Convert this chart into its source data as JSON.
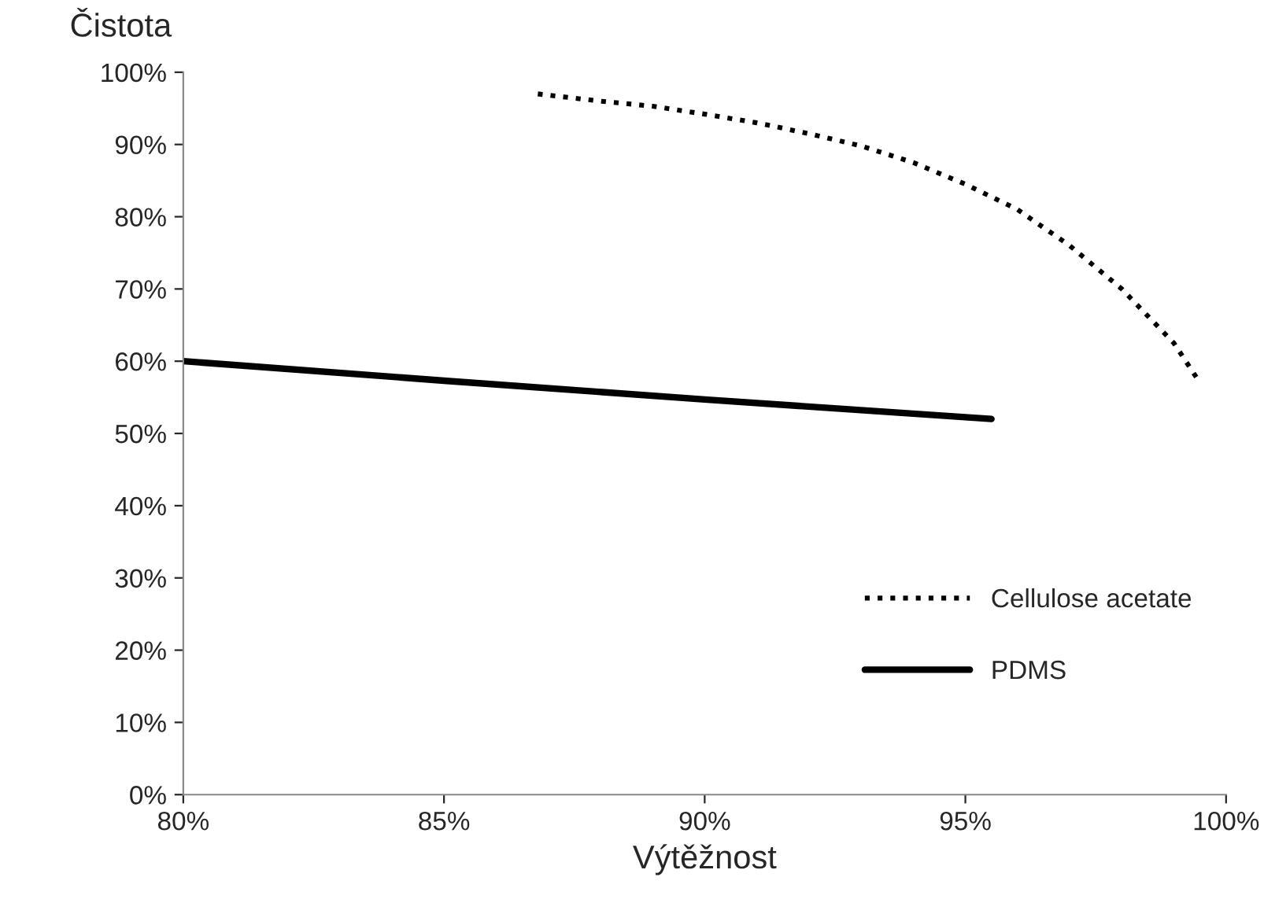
{
  "chart_data": {
    "type": "line",
    "xlabel": "Výtěžnost",
    "ylabel": "Čistota",
    "xlim": [
      80,
      100
    ],
    "ylim": [
      0,
      100
    ],
    "xticks": [
      {
        "value": 80,
        "label": "80%"
      },
      {
        "value": 85,
        "label": "85%"
      },
      {
        "value": 90,
        "label": "90%"
      },
      {
        "value": 95,
        "label": "95%"
      },
      {
        "value": 100,
        "label": "100%"
      }
    ],
    "yticks": [
      {
        "value": 0,
        "label": "0%"
      },
      {
        "value": 10,
        "label": "10%"
      },
      {
        "value": 20,
        "label": "20%"
      },
      {
        "value": 30,
        "label": "30%"
      },
      {
        "value": 40,
        "label": "40%"
      },
      {
        "value": 50,
        "label": "50%"
      },
      {
        "value": 60,
        "label": "60%"
      },
      {
        "value": 70,
        "label": "70%"
      },
      {
        "value": 80,
        "label": "80%"
      },
      {
        "value": 90,
        "label": "90%"
      },
      {
        "value": 100,
        "label": "100%"
      }
    ],
    "grid": false,
    "legend": "bottom right",
    "series": [
      {
        "name": "Cellulose acetate",
        "color": "#000000",
        "line_style": "dotted",
        "x": [
          86.8,
          88,
          89,
          90,
          91,
          92,
          93,
          94,
          95,
          96,
          97,
          98,
          99,
          99.5
        ],
        "values": [
          97,
          96,
          95.3,
          94.2,
          93,
          91.5,
          89.8,
          87.5,
          84.5,
          81,
          76,
          70,
          62.5,
          57
        ]
      },
      {
        "name": "PDMS",
        "color": "#000000",
        "line_style": "solid",
        "x": [
          80,
          85,
          90,
          95.5
        ],
        "values": [
          60,
          57.3,
          54.7,
          52
        ]
      }
    ]
  }
}
